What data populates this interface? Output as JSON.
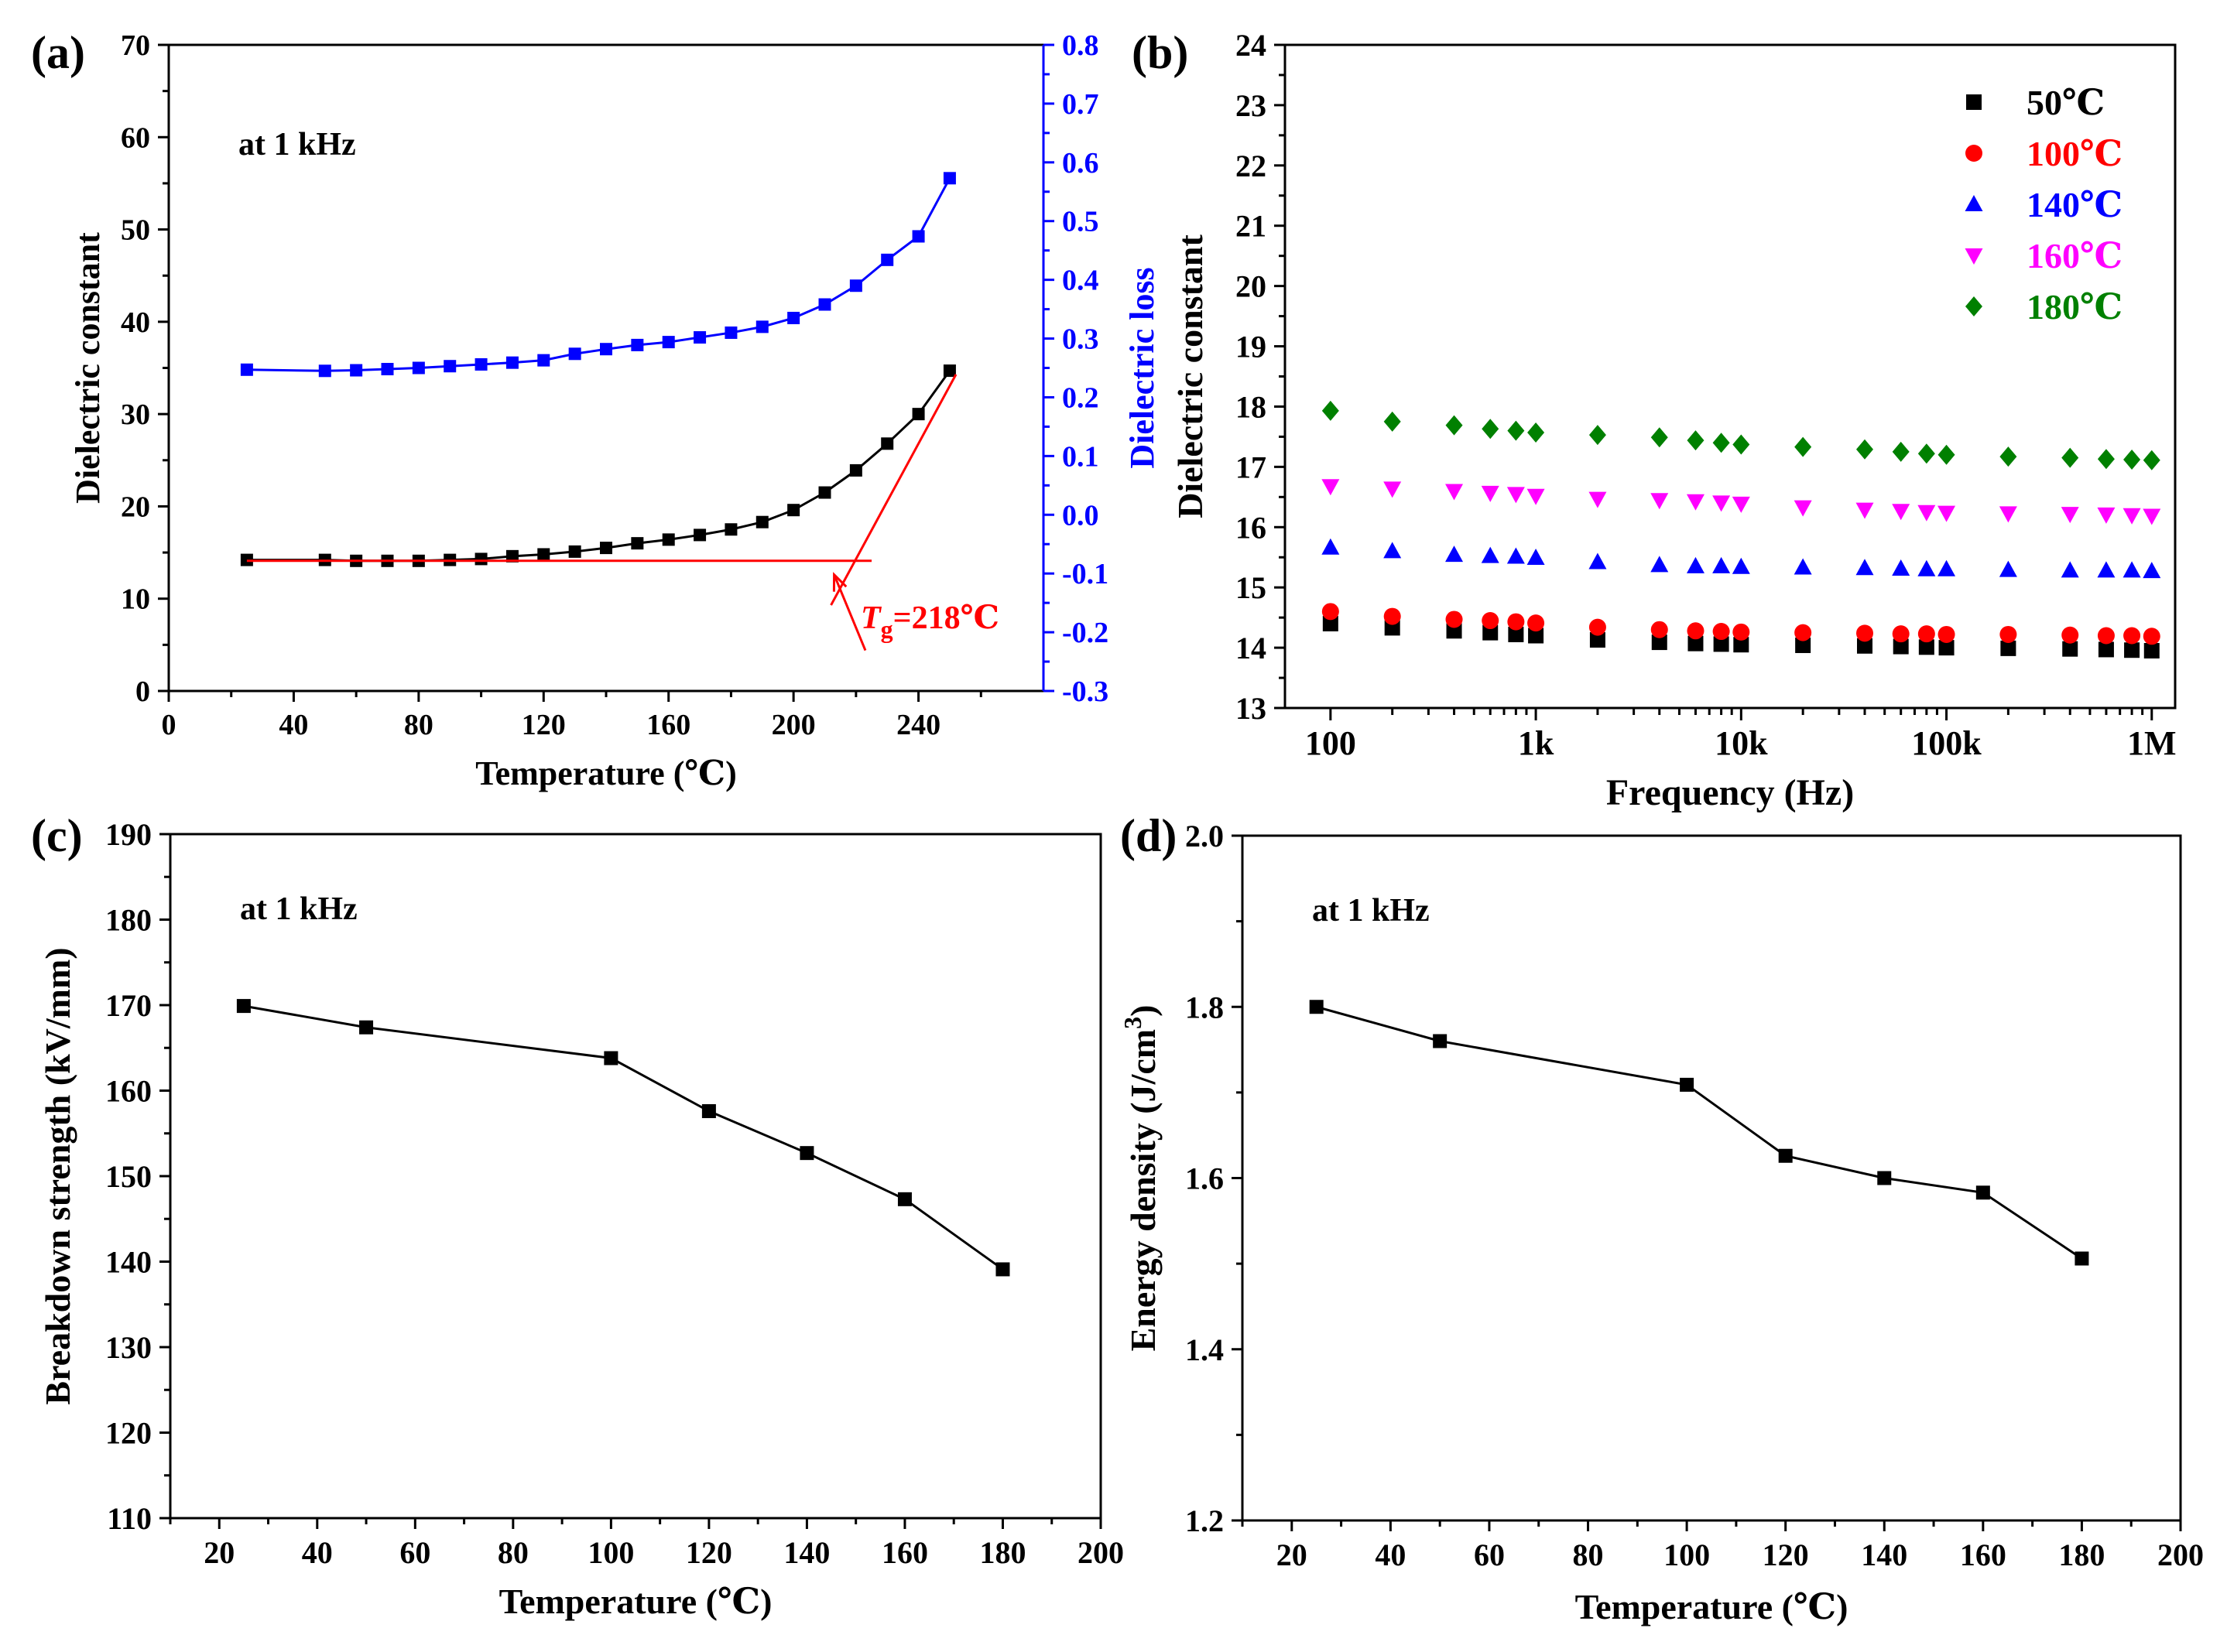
{
  "figure": {
    "panels": [
      "(a)",
      "(b)",
      "(c)",
      "(d)"
    ]
  },
  "chart_data": [
    {
      "panel": "(a)",
      "type": "line",
      "annotation": "at 1 kHz",
      "xlabel": "Temperature (℃)",
      "ylabel": "Dielectric constant",
      "y2label": "Dielectric loss",
      "xlim": [
        0,
        280
      ],
      "ylim": [
        0,
        70
      ],
      "y2lim": [
        -0.3,
        0.8
      ],
      "xticks": [
        "0",
        "40",
        "80",
        "120",
        "160",
        "200",
        "240"
      ],
      "yticks": [
        "0",
        "10",
        "20",
        "30",
        "40",
        "50",
        "60",
        "70"
      ],
      "y2ticks": [
        "-0.3",
        "-0.2",
        "-0.1",
        "0.0",
        "0.1",
        "0.2",
        "0.3",
        "0.4",
        "0.5",
        "0.6",
        "0.7",
        "0.8"
      ],
      "x": [
        25,
        50,
        60,
        70,
        80,
        90,
        100,
        110,
        120,
        130,
        140,
        150,
        160,
        170,
        180,
        190,
        200,
        210,
        220,
        230,
        240,
        250
      ],
      "series": [
        {
          "axis": "left",
          "color": "#000000",
          "values": [
            14.2,
            14.2,
            14.1,
            14.1,
            14.1,
            14.2,
            14.3,
            14.6,
            14.8,
            15.1,
            15.5,
            16.0,
            16.4,
            16.9,
            17.5,
            18.3,
            19.6,
            21.5,
            23.9,
            26.8,
            30.0,
            34.7
          ]
        },
        {
          "axis": "right",
          "color": "#0000ff",
          "values": [
            0.247,
            0.245,
            0.246,
            0.248,
            0.25,
            0.253,
            0.256,
            0.259,
            0.263,
            0.274,
            0.282,
            0.289,
            0.294,
            0.302,
            0.31,
            0.32,
            0.335,
            0.358,
            0.39,
            0.434,
            0.474,
            0.573
          ]
        }
      ],
      "tangent_lines": [
        {
          "color": "#ff0000",
          "x": [
            25,
            225
          ],
          "y": [
            14.1,
            14.1
          ]
        },
        {
          "color": "#ff0000",
          "x": [
            212,
            252
          ],
          "y": [
            9.3,
            34.3
          ]
        }
      ],
      "tg_label": {
        "symbol": "T",
        "subscript": "g",
        "value": "=218℃",
        "color": "#ff0000"
      },
      "tg_arrow": {
        "color": "#ff0000",
        "from": [
          223,
          4.4
        ],
        "to": [
          213,
          12.6
        ]
      }
    },
    {
      "panel": "(b)",
      "type": "scatter",
      "xscale": "log",
      "xlabel": "Frequency (Hz)",
      "ylabel": "Dielectric constant",
      "xlim": [
        60,
        1300000
      ],
      "ylim": [
        13,
        24
      ],
      "xticks": [
        {
          "value": 100,
          "label": "100"
        },
        {
          "value": 1000,
          "label": "1k"
        },
        {
          "value": 10000,
          "label": "10k"
        },
        {
          "value": 100000,
          "label": "100k"
        },
        {
          "value": 1000000,
          "label": "1M"
        }
      ],
      "yticks": [
        "13",
        "14",
        "15",
        "16",
        "17",
        "18",
        "19",
        "20",
        "21",
        "22",
        "23",
        "24"
      ],
      "x": [
        100,
        200,
        400,
        600,
        800,
        1000,
        2000,
        4000,
        6000,
        8000,
        10000,
        20000,
        40000,
        60000,
        80000,
        100000,
        200000,
        400000,
        600000,
        800000,
        1000000
      ],
      "legend_position": "top-right",
      "series": [
        {
          "name": "50℃",
          "marker": "square",
          "color": "#000000",
          "values": [
            14.4,
            14.33,
            14.28,
            14.25,
            14.22,
            14.2,
            14.13,
            14.09,
            14.07,
            14.06,
            14.05,
            14.04,
            14.03,
            14.02,
            14.01,
            14.0,
            13.99,
            13.98,
            13.97,
            13.96,
            13.95
          ]
        },
        {
          "name": "100℃",
          "marker": "circle",
          "color": "#ff0000",
          "values": [
            14.6,
            14.52,
            14.47,
            14.45,
            14.43,
            14.41,
            14.34,
            14.3,
            14.28,
            14.27,
            14.26,
            14.25,
            14.24,
            14.23,
            14.23,
            14.22,
            14.22,
            14.21,
            14.2,
            14.2,
            14.19
          ]
        },
        {
          "name": "140℃",
          "marker": "triangle-up",
          "color": "#0000ff",
          "values": [
            15.66,
            15.6,
            15.54,
            15.52,
            15.51,
            15.49,
            15.42,
            15.37,
            15.35,
            15.35,
            15.34,
            15.33,
            15.32,
            15.31,
            15.3,
            15.3,
            15.29,
            15.28,
            15.28,
            15.28,
            15.27
          ]
        },
        {
          "name": "160℃",
          "marker": "triangle-down",
          "color": "#ff00ff",
          "values": [
            16.68,
            16.64,
            16.6,
            16.57,
            16.55,
            16.52,
            16.47,
            16.45,
            16.43,
            16.41,
            16.39,
            16.33,
            16.29,
            16.27,
            16.25,
            16.24,
            16.23,
            16.22,
            16.21,
            16.2,
            16.19
          ]
        },
        {
          "name": "180℃",
          "marker": "diamond",
          "color": "#008000",
          "values": [
            17.93,
            17.75,
            17.69,
            17.63,
            17.6,
            17.57,
            17.53,
            17.49,
            17.44,
            17.4,
            17.37,
            17.33,
            17.29,
            17.25,
            17.22,
            17.2,
            17.17,
            17.15,
            17.13,
            17.12,
            17.11
          ]
        }
      ]
    },
    {
      "panel": "(c)",
      "type": "line",
      "annotation": "at 1 kHz",
      "xlabel": "Temperature (℃)",
      "ylabel": "Breakdown strength (kV/mm)",
      "xlim": [
        10,
        200
      ],
      "ylim": [
        110,
        190
      ],
      "xticks": [
        "20",
        "40",
        "60",
        "80",
        "100",
        "120",
        "140",
        "160",
        "180",
        "200"
      ],
      "yticks": [
        "110",
        "120",
        "130",
        "140",
        "150",
        "160",
        "170",
        "180",
        "190"
      ],
      "x": [
        25,
        50,
        100,
        120,
        140,
        160,
        180
      ],
      "series": [
        {
          "color": "#000000",
          "marker": "square",
          "values": [
            169.9,
            167.4,
            163.8,
            157.6,
            152.7,
            147.3,
            139.1
          ]
        }
      ]
    },
    {
      "panel": "(d)",
      "type": "line",
      "annotation": "at 1 kHz",
      "xlabel": "Temperature (℃)",
      "ylabel": "Energy density (J/cm",
      "ylabel_sup": "3",
      "ylabel_tail": ")",
      "xlim": [
        10,
        200
      ],
      "ylim": [
        1.2,
        2.0
      ],
      "xticks": [
        "20",
        "40",
        "60",
        "80",
        "100",
        "120",
        "140",
        "160",
        "180",
        "200"
      ],
      "yticks": [
        "1.2",
        "1.4",
        "1.6",
        "1.8",
        "2.0"
      ],
      "x": [
        25,
        50,
        100,
        120,
        140,
        160,
        180
      ],
      "series": [
        {
          "color": "#000000",
          "marker": "square",
          "values": [
            1.8,
            1.76,
            1.709,
            1.626,
            1.6,
            1.583,
            1.506
          ]
        }
      ]
    }
  ]
}
